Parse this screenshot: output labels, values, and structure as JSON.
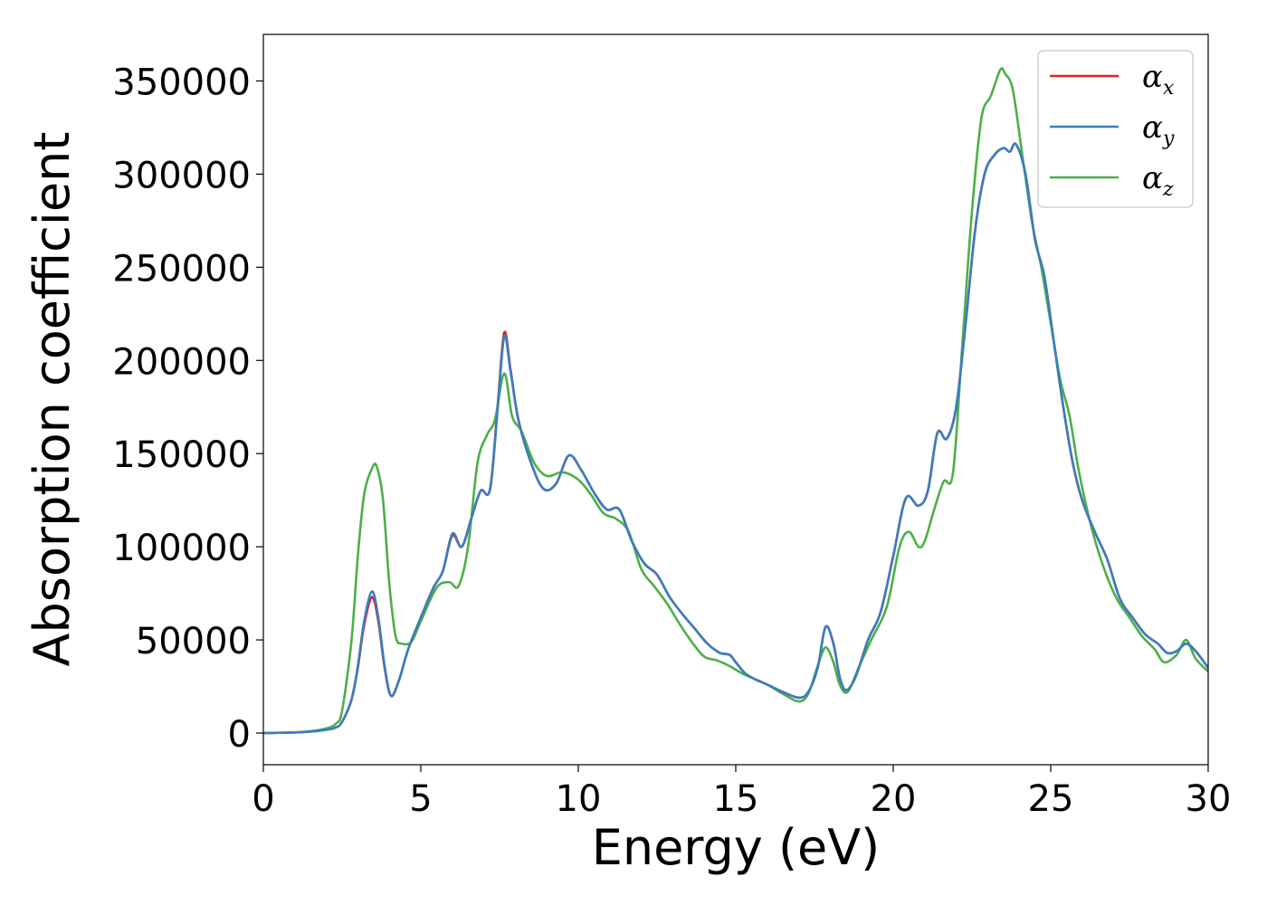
{
  "chart_data": {
    "type": "line",
    "title": "",
    "xlabel": "Energy (eV)",
    "ylabel": "Absorption coefficient",
    "xlim": [
      0,
      30
    ],
    "ylim": [
      -17000,
      375000
    ],
    "xticks": [
      0,
      5,
      10,
      15,
      20,
      25,
      30
    ],
    "yticks": [
      0,
      50000,
      100000,
      150000,
      200000,
      250000,
      300000,
      350000
    ],
    "xtick_labels": [
      "0",
      "5",
      "10",
      "15",
      "20",
      "25",
      "30"
    ],
    "ytick_labels": [
      "0",
      "50000",
      "100000",
      "150000",
      "200000",
      "250000",
      "300000",
      "350000"
    ],
    "grid": false,
    "legend_position": "top-right",
    "series": [
      {
        "name": "α",
        "subscript": "x",
        "color": "#d62728",
        "points": [
          [
            0,
            0
          ],
          [
            1,
            300
          ],
          [
            1.5,
            800
          ],
          [
            2,
            1800
          ],
          [
            2.3,
            3000
          ],
          [
            2.5,
            6000
          ],
          [
            2.8,
            18000
          ],
          [
            3.0,
            35000
          ],
          [
            3.2,
            58000
          ],
          [
            3.45,
            73000
          ],
          [
            3.65,
            60000
          ],
          [
            3.85,
            35000
          ],
          [
            4.05,
            20000
          ],
          [
            4.3,
            28000
          ],
          [
            4.6,
            45000
          ],
          [
            5.0,
            62000
          ],
          [
            5.4,
            78000
          ],
          [
            5.7,
            87000
          ],
          [
            6.0,
            106000
          ],
          [
            6.3,
            100000
          ],
          [
            6.6,
            115000
          ],
          [
            6.9,
            130000
          ],
          [
            7.2,
            131000
          ],
          [
            7.45,
            178000
          ],
          [
            7.65,
            215000
          ],
          [
            7.85,
            195000
          ],
          [
            8.1,
            168000
          ],
          [
            8.5,
            145000
          ],
          [
            8.9,
            131000
          ],
          [
            9.3,
            134000
          ],
          [
            9.7,
            149000
          ],
          [
            10.1,
            141000
          ],
          [
            10.5,
            129000
          ],
          [
            10.9,
            120000
          ],
          [
            11.3,
            120000
          ],
          [
            11.7,
            103000
          ],
          [
            12.1,
            91000
          ],
          [
            12.5,
            85000
          ],
          [
            12.9,
            73000
          ],
          [
            13.3,
            64000
          ],
          [
            13.7,
            56000
          ],
          [
            14.1,
            48000
          ],
          [
            14.5,
            43000
          ],
          [
            14.8,
            42000
          ],
          [
            15.0,
            38000
          ],
          [
            15.3,
            32000
          ],
          [
            15.6,
            29000
          ],
          [
            16.0,
            26000
          ],
          [
            16.5,
            22000
          ],
          [
            17.0,
            19000
          ],
          [
            17.3,
            22000
          ],
          [
            17.6,
            35000
          ],
          [
            17.85,
            57000
          ],
          [
            18.1,
            48000
          ],
          [
            18.3,
            30000
          ],
          [
            18.5,
            23000
          ],
          [
            18.8,
            30000
          ],
          [
            19.2,
            50000
          ],
          [
            19.6,
            65000
          ],
          [
            20.0,
            95000
          ],
          [
            20.4,
            126000
          ],
          [
            20.8,
            122000
          ],
          [
            21.1,
            130000
          ],
          [
            21.4,
            161000
          ],
          [
            21.7,
            158000
          ],
          [
            22.0,
            175000
          ],
          [
            22.3,
            220000
          ],
          [
            22.6,
            270000
          ],
          [
            22.9,
            300000
          ],
          [
            23.2,
            310000
          ],
          [
            23.5,
            314000
          ],
          [
            23.7,
            312000
          ],
          [
            23.9,
            316000
          ],
          [
            24.2,
            300000
          ],
          [
            24.5,
            265000
          ],
          [
            24.8,
            245000
          ],
          [
            25.1,
            210000
          ],
          [
            25.4,
            175000
          ],
          [
            25.7,
            145000
          ],
          [
            26.0,
            125000
          ],
          [
            26.4,
            108000
          ],
          [
            26.8,
            93000
          ],
          [
            27.2,
            72000
          ],
          [
            27.6,
            62000
          ],
          [
            28.0,
            53000
          ],
          [
            28.4,
            48000
          ],
          [
            28.7,
            43000
          ],
          [
            29.0,
            44000
          ],
          [
            29.3,
            48000
          ],
          [
            29.6,
            44000
          ],
          [
            30.0,
            35000
          ]
        ]
      },
      {
        "name": "α",
        "subscript": "y",
        "color": "#3a7dbf",
        "points": [
          [
            0,
            0
          ],
          [
            1,
            300
          ],
          [
            1.5,
            800
          ],
          [
            2,
            1800
          ],
          [
            2.3,
            3000
          ],
          [
            2.5,
            6000
          ],
          [
            2.8,
            18000
          ],
          [
            3.0,
            36000
          ],
          [
            3.2,
            60000
          ],
          [
            3.45,
            76000
          ],
          [
            3.65,
            62000
          ],
          [
            3.85,
            36000
          ],
          [
            4.05,
            20000
          ],
          [
            4.3,
            28000
          ],
          [
            4.6,
            45000
          ],
          [
            5.0,
            62000
          ],
          [
            5.4,
            78000
          ],
          [
            5.7,
            87000
          ],
          [
            6.0,
            107000
          ],
          [
            6.3,
            100000
          ],
          [
            6.6,
            115000
          ],
          [
            6.9,
            130000
          ],
          [
            7.2,
            131000
          ],
          [
            7.45,
            176000
          ],
          [
            7.65,
            213000
          ],
          [
            7.85,
            194000
          ],
          [
            8.1,
            168000
          ],
          [
            8.5,
            145000
          ],
          [
            8.9,
            131000
          ],
          [
            9.3,
            134000
          ],
          [
            9.7,
            149000
          ],
          [
            10.1,
            141000
          ],
          [
            10.5,
            129000
          ],
          [
            10.9,
            120000
          ],
          [
            11.3,
            120000
          ],
          [
            11.7,
            103000
          ],
          [
            12.1,
            91000
          ],
          [
            12.5,
            85000
          ],
          [
            12.9,
            73000
          ],
          [
            13.3,
            64000
          ],
          [
            13.7,
            56000
          ],
          [
            14.1,
            48000
          ],
          [
            14.5,
            43000
          ],
          [
            14.8,
            42000
          ],
          [
            15.0,
            38000
          ],
          [
            15.3,
            32000
          ],
          [
            15.6,
            29000
          ],
          [
            16.0,
            26000
          ],
          [
            16.5,
            22000
          ],
          [
            17.0,
            19000
          ],
          [
            17.3,
            22000
          ],
          [
            17.6,
            35000
          ],
          [
            17.85,
            57000
          ],
          [
            18.1,
            48000
          ],
          [
            18.3,
            30000
          ],
          [
            18.5,
            23000
          ],
          [
            18.8,
            30000
          ],
          [
            19.2,
            50000
          ],
          [
            19.6,
            65000
          ],
          [
            20.0,
            95000
          ],
          [
            20.4,
            126000
          ],
          [
            20.8,
            122000
          ],
          [
            21.1,
            130000
          ],
          [
            21.4,
            161000
          ],
          [
            21.7,
            158000
          ],
          [
            22.0,
            175000
          ],
          [
            22.3,
            220000
          ],
          [
            22.6,
            270000
          ],
          [
            22.9,
            300000
          ],
          [
            23.2,
            310000
          ],
          [
            23.5,
            314000
          ],
          [
            23.7,
            312000
          ],
          [
            23.9,
            316000
          ],
          [
            24.2,
            300000
          ],
          [
            24.5,
            265000
          ],
          [
            24.8,
            245000
          ],
          [
            25.1,
            210000
          ],
          [
            25.4,
            175000
          ],
          [
            25.7,
            145000
          ],
          [
            26.0,
            125000
          ],
          [
            26.4,
            108000
          ],
          [
            26.8,
            93000
          ],
          [
            27.2,
            72000
          ],
          [
            27.6,
            62000
          ],
          [
            28.0,
            53000
          ],
          [
            28.4,
            48000
          ],
          [
            28.7,
            43000
          ],
          [
            29.0,
            44000
          ],
          [
            29.3,
            48000
          ],
          [
            29.6,
            44000
          ],
          [
            30.0,
            35000
          ]
        ]
      },
      {
        "name": "α",
        "subscript": "z",
        "color": "#4daf4a",
        "points": [
          [
            0,
            0
          ],
          [
            1,
            400
          ],
          [
            1.5,
            1000
          ],
          [
            2,
            2500
          ],
          [
            2.3,
            5000
          ],
          [
            2.5,
            12000
          ],
          [
            2.8,
            50000
          ],
          [
            3.0,
            95000
          ],
          [
            3.2,
            128000
          ],
          [
            3.45,
            142000
          ],
          [
            3.6,
            143000
          ],
          [
            3.8,
            125000
          ],
          [
            4.0,
            80000
          ],
          [
            4.2,
            52000
          ],
          [
            4.4,
            48000
          ],
          [
            4.7,
            49000
          ],
          [
            5.0,
            60000
          ],
          [
            5.5,
            78000
          ],
          [
            5.9,
            81000
          ],
          [
            6.2,
            79000
          ],
          [
            6.5,
            100000
          ],
          [
            6.8,
            145000
          ],
          [
            7.1,
            160000
          ],
          [
            7.35,
            168000
          ],
          [
            7.65,
            193000
          ],
          [
            7.9,
            170000
          ],
          [
            8.2,
            162000
          ],
          [
            8.6,
            145000
          ],
          [
            9.0,
            138000
          ],
          [
            9.5,
            140000
          ],
          [
            10.0,
            136000
          ],
          [
            10.4,
            128000
          ],
          [
            10.8,
            118000
          ],
          [
            11.2,
            115000
          ],
          [
            11.6,
            108000
          ],
          [
            12.0,
            88000
          ],
          [
            12.4,
            79000
          ],
          [
            12.8,
            70000
          ],
          [
            13.2,
            59000
          ],
          [
            13.6,
            49000
          ],
          [
            14.0,
            41000
          ],
          [
            14.4,
            39000
          ],
          [
            14.8,
            36000
          ],
          [
            15.2,
            32000
          ],
          [
            15.6,
            29000
          ],
          [
            16.0,
            26000
          ],
          [
            16.5,
            21000
          ],
          [
            17.0,
            17000
          ],
          [
            17.3,
            21000
          ],
          [
            17.6,
            36000
          ],
          [
            17.85,
            46000
          ],
          [
            18.1,
            38000
          ],
          [
            18.3,
            26000
          ],
          [
            18.55,
            22000
          ],
          [
            18.9,
            35000
          ],
          [
            19.3,
            50000
          ],
          [
            19.8,
            68000
          ],
          [
            20.2,
            100000
          ],
          [
            20.5,
            108000
          ],
          [
            20.8,
            100000
          ],
          [
            21.0,
            103000
          ],
          [
            21.3,
            120000
          ],
          [
            21.6,
            135000
          ],
          [
            21.9,
            140000
          ],
          [
            22.2,
            210000
          ],
          [
            22.5,
            280000
          ],
          [
            22.8,
            330000
          ],
          [
            23.1,
            342000
          ],
          [
            23.4,
            356000
          ],
          [
            23.55,
            354000
          ],
          [
            23.8,
            345000
          ],
          [
            24.1,
            310000
          ],
          [
            24.4,
            275000
          ],
          [
            24.7,
            250000
          ],
          [
            25.0,
            220000
          ],
          [
            25.3,
            190000
          ],
          [
            25.6,
            170000
          ],
          [
            25.9,
            140000
          ],
          [
            26.3,
            110000
          ],
          [
            26.7,
            88000
          ],
          [
            27.1,
            72000
          ],
          [
            27.5,
            62000
          ],
          [
            27.9,
            52000
          ],
          [
            28.3,
            45000
          ],
          [
            28.6,
            38000
          ],
          [
            29.0,
            42000
          ],
          [
            29.3,
            50000
          ],
          [
            29.6,
            40000
          ],
          [
            30.0,
            33000
          ]
        ]
      }
    ]
  }
}
